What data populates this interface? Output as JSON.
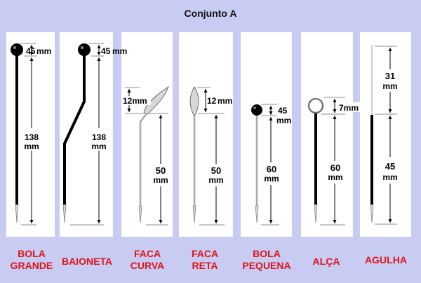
{
  "title": "Conjunto A",
  "instruments": [
    {
      "name1": "BOLA",
      "name2": "GRANDE",
      "dims": [
        "45",
        "mm",
        "138",
        "mm"
      ]
    },
    {
      "name1": "BAIONETA",
      "name2": "",
      "dims": [
        "45",
        "mm",
        "138",
        "mm"
      ]
    },
    {
      "name1": "FACA",
      "name2": "CURVA",
      "dims": [
        "12mm",
        "50",
        "mm"
      ]
    },
    {
      "name1": "FACA",
      "name2": "RETA",
      "dims": [
        "12",
        "mm",
        "50",
        "mm"
      ]
    },
    {
      "name1": "BOLA",
      "name2": "PEQUENA",
      "dims": [
        "45",
        "mm",
        "60",
        "mm"
      ]
    },
    {
      "name1": "ALÇA",
      "name2": "",
      "dims": [
        "7mm",
        "60",
        "mm"
      ]
    },
    {
      "name1": "AGULHA",
      "name2": "",
      "dims": [
        "31",
        "mm",
        "45",
        "mm"
      ]
    }
  ]
}
